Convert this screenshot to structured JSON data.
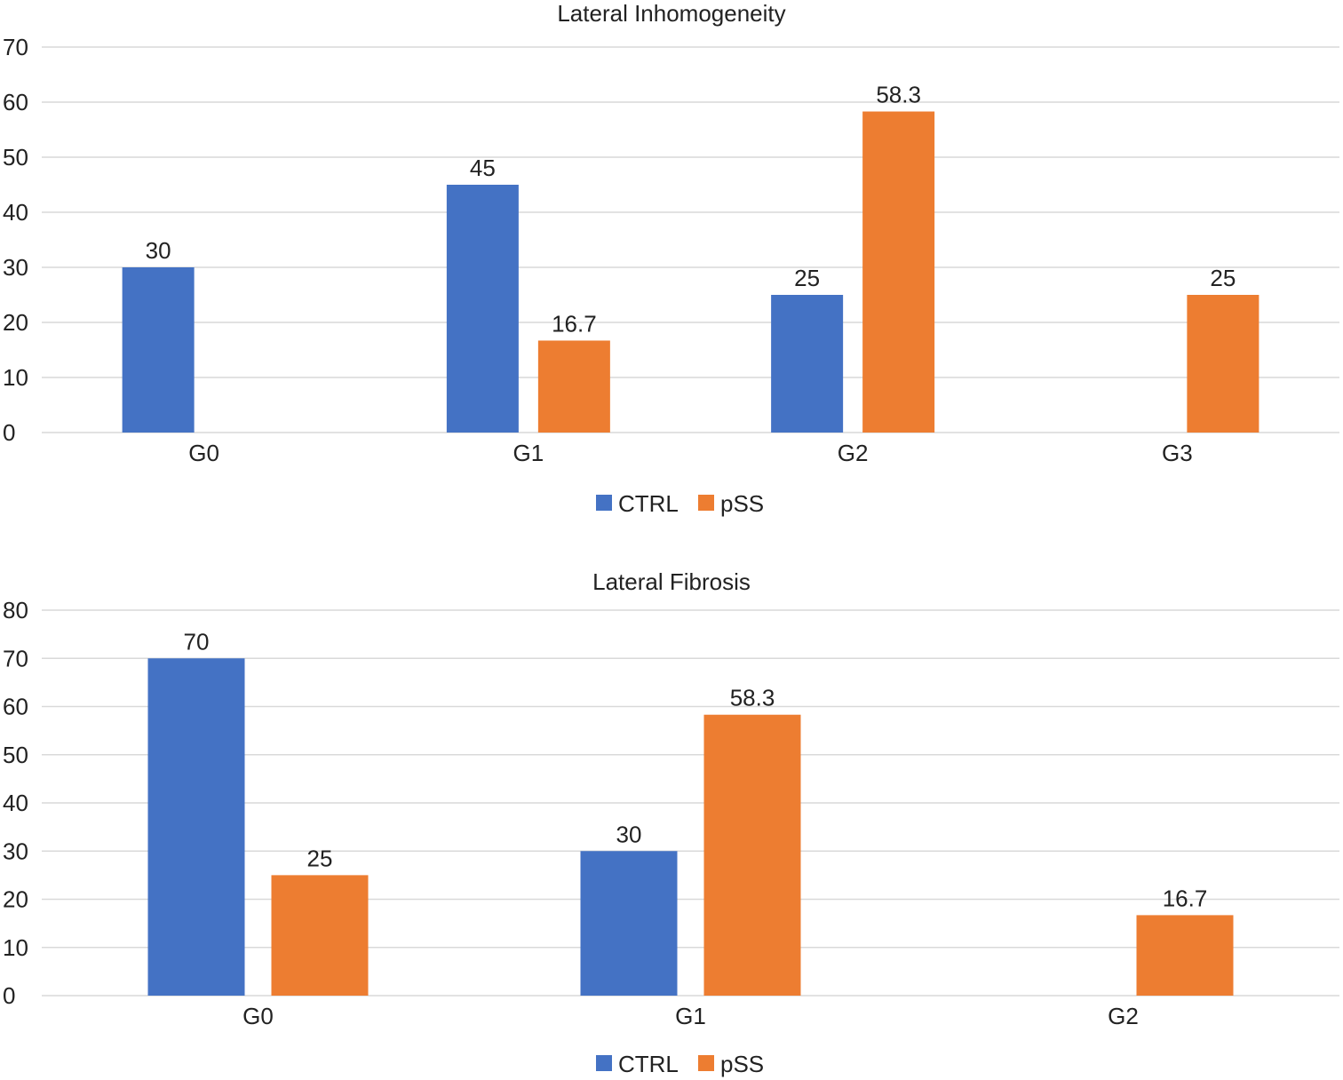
{
  "chart_data": [
    {
      "type": "bar",
      "title": "Lateral Inhomogeneity",
      "categories": [
        "G0",
        "G1",
        "G2",
        "G3"
      ],
      "series": [
        {
          "name": "CTRL",
          "color": "#4472C4",
          "values": [
            30,
            45,
            25,
            null
          ]
        },
        {
          "name": "pSS",
          "color": "#ED7D31",
          "values": [
            null,
            16.7,
            58.3,
            25
          ]
        }
      ],
      "data_labels": [
        [
          "30",
          "45",
          "25",
          ""
        ],
        [
          "",
          "16.7",
          "58.3",
          "25"
        ]
      ],
      "yticks": [
        "0",
        "10",
        "20",
        "30",
        "40",
        "50",
        "60",
        "70"
      ],
      "ylim": [
        0,
        70
      ],
      "grid": true,
      "legend": "bottom-center",
      "xlabel": "",
      "ylabel": ""
    },
    {
      "type": "bar",
      "title": "Lateral Fibrosis",
      "categories": [
        "G0",
        "G1",
        "G2"
      ],
      "series": [
        {
          "name": "CTRL",
          "color": "#4472C4",
          "values": [
            70,
            30,
            null
          ]
        },
        {
          "name": "pSS",
          "color": "#ED7D31",
          "values": [
            25,
            58.3,
            16.7
          ]
        }
      ],
      "data_labels": [
        [
          "70",
          "30",
          ""
        ],
        [
          "25",
          "58.3",
          "16.7"
        ]
      ],
      "yticks": [
        "0",
        "10",
        "20",
        "30",
        "40",
        "50",
        "60",
        "70",
        "80"
      ],
      "ylim": [
        0,
        80
      ],
      "grid": true,
      "legend": "bottom-center",
      "xlabel": "",
      "ylabel": ""
    }
  ]
}
